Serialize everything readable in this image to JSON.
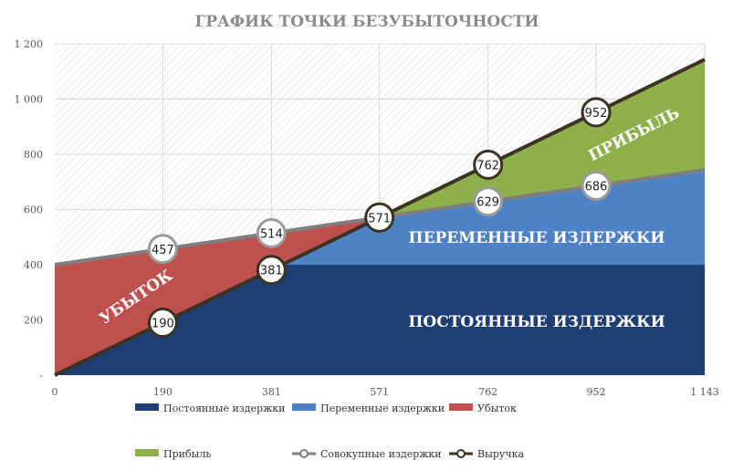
{
  "chart_data": {
    "type": "area",
    "title": "ГРАФИК ТОЧКИ БЕЗУБЫТОЧНОСТИ",
    "x": [
      0,
      190,
      381,
      571,
      762,
      952,
      1143
    ],
    "x_tick_labels": [
      "0",
      "190",
      "381",
      "571",
      "762",
      "952",
      "1 143"
    ],
    "y_tick_labels": [
      "-",
      "200",
      "400",
      "600",
      "800",
      "1 000",
      "1 200"
    ],
    "ylim": [
      0,
      1200
    ],
    "grid": true,
    "legend_position": "bottom",
    "series": [
      {
        "name": "Постоянные издержки",
        "color": "#1f3e73",
        "values": [
          400,
          400,
          400,
          400,
          400,
          400,
          400
        ]
      },
      {
        "name": "Переменные издержки",
        "color": "#4f81c6",
        "values": [
          0,
          57,
          114,
          171,
          229,
          286,
          343
        ]
      },
      {
        "name": "Убыток",
        "color": "#c0504d",
        "values": [
          400,
          267,
          133,
          0,
          0,
          0,
          0
        ]
      },
      {
        "name": "Прибыль",
        "color": "#8db04a",
        "values": [
          0,
          0,
          0,
          0,
          133,
          266,
          400
        ]
      },
      {
        "name": "Совокупные издержки",
        "color": "#7f7f7f",
        "values": [
          400,
          457,
          514,
          571,
          629,
          686,
          743
        ]
      },
      {
        "name": "Выручка",
        "color": "#3b3323",
        "values": [
          0,
          190,
          381,
          571,
          762,
          952,
          1143
        ]
      }
    ],
    "point_labels": {
      "revenue": [
        "190",
        "381",
        "571",
        "762",
        "952"
      ],
      "total_costs": [
        "457",
        "514",
        "629",
        "686"
      ]
    },
    "band_labels": {
      "loss": "УБЫТОК",
      "profit": "ПРИБЫЛЬ",
      "variable": "ПЕРЕМЕННЫЕ ИЗДЕРЖКИ",
      "fixed": "ПОСТОЯННЫЕ ИЗДЕРЖКИ"
    }
  }
}
